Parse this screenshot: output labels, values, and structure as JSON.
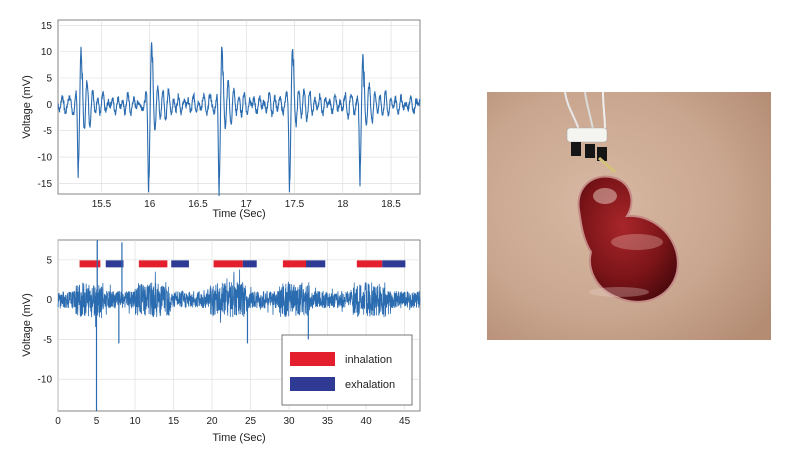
{
  "chart_data": [
    {
      "type": "line",
      "panel": "top",
      "xlabel": "Time (Sec)",
      "ylabel": "Voltage (mV)",
      "xlim": [
        15.05,
        18.8
      ],
      "ylim": [
        -17,
        16
      ],
      "xticks": [
        "15.5",
        "16",
        "16.5",
        "17",
        "17.5",
        "18",
        "18.5"
      ],
      "yticks": [
        "15",
        "10",
        "5",
        "0",
        "-5",
        "-10",
        "-15"
      ],
      "grid": true,
      "series_color": "#2b6cb0",
      "beats": [
        {
          "t": 15.28,
          "peak": 11,
          "trough": -12.5
        },
        {
          "t": 16.01,
          "peak": 11.8,
          "trough": -14.5
        },
        {
          "t": 16.74,
          "peak": 12.2,
          "trough": -15.8
        },
        {
          "t": 17.47,
          "peak": 11.5,
          "trough": -14.5
        },
        {
          "t": 18.2,
          "peak": 10.5,
          "trough": -14
        }
      ]
    },
    {
      "type": "line",
      "panel": "bottom",
      "xlabel": "Time (Sec)",
      "ylabel": "Voltage (mV)",
      "xlim": [
        0,
        47
      ],
      "ylim": [
        -14,
        7.5
      ],
      "xticks": [
        "0",
        "5",
        "10",
        "15",
        "20",
        "25",
        "30",
        "35",
        "40",
        "45"
      ],
      "yticks": [
        "5",
        "0",
        "-5",
        "-10"
      ],
      "grid": true,
      "series_color": "#2b6cb0",
      "spikes": [
        {
          "t": 5.0,
          "v": -14
        },
        {
          "t": 5.1,
          "v": 7.5
        },
        {
          "t": 8.3,
          "v": 7.2
        },
        {
          "t": 7.9,
          "v": -5.5
        },
        {
          "t": 24.6,
          "v": -5.5
        },
        {
          "t": 32.5,
          "v": -5
        }
      ],
      "legend": {
        "position": "bottom-right",
        "entries": [
          {
            "label": "inhalation",
            "color": "#e31e2d"
          },
          {
            "label": "exhalation",
            "color": "#2e3a94"
          }
        ]
      },
      "breathing_phases": {
        "y": 4.5,
        "inhalation": [
          [
            2.8,
            5.5
          ],
          [
            10.5,
            14.2
          ],
          [
            20.2,
            24
          ],
          [
            29.2,
            32.2
          ],
          [
            38.8,
            42.1
          ]
        ],
        "exhalation": [
          [
            6.2,
            8.5
          ],
          [
            14.7,
            17
          ],
          [
            24,
            25.8
          ],
          [
            32.2,
            34.7
          ],
          [
            42.1,
            45.1
          ]
        ]
      }
    }
  ],
  "photo": {
    "description_name": "skin-patch-sensor-photo",
    "skin_color": "#c9a68f",
    "gel_color": "#7a1418"
  }
}
